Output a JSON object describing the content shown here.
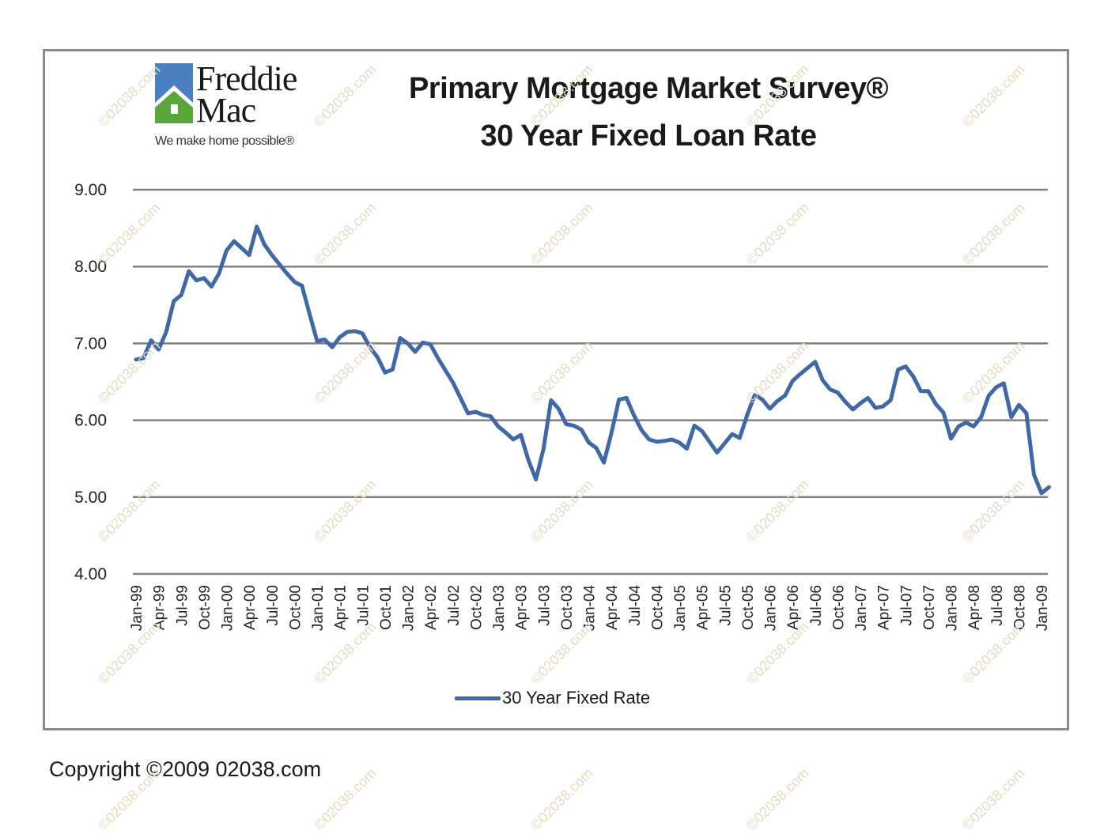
{
  "logo": {
    "name_line1": "Freddie",
    "name_line2": "Mac",
    "tagline": "We make home possible®",
    "colors": {
      "roof": "#4a7fc1",
      "house": "#5aa63a"
    }
  },
  "title": {
    "line1": "Primary Mortgage Market Survey®",
    "line2": "30 Year Fixed Loan Rate"
  },
  "legend": {
    "label": "30 Year Fixed Rate",
    "color": "#4068a8"
  },
  "copyright": "Copyright ©2009 02038.com",
  "watermark": "©02038.com",
  "chart_data": {
    "type": "line",
    "title": "Primary Mortgage Market Survey® 30 Year Fixed Loan Rate",
    "xlabel": "",
    "ylabel": "",
    "ylim": [
      4.0,
      9.0
    ],
    "yticks": [
      "9.00",
      "8.00",
      "7.00",
      "6.00",
      "5.00",
      "4.00"
    ],
    "grid": true,
    "legend_position": "bottom",
    "xtick_labels": [
      "Jan-99",
      "Apr-99",
      "Jul-99",
      "Oct-99",
      "Jan-00",
      "Apr-00",
      "Jul-00",
      "Oct-00",
      "Jan-01",
      "Apr-01",
      "Jul-01",
      "Oct-01",
      "Jan-02",
      "Apr-02",
      "Jul-02",
      "Oct-02",
      "Jan-03",
      "Apr-03",
      "Jul-03",
      "Oct-03",
      "Jan-04",
      "Apr-04",
      "Jul-04",
      "Oct-04",
      "Jan-05",
      "Apr-05",
      "Jul-05",
      "Oct-05",
      "Jan-06",
      "Apr-06",
      "Jul-06",
      "Oct-06",
      "Jan-07",
      "Apr-07",
      "Jul-07",
      "Oct-07",
      "Jan-08",
      "Apr-08",
      "Jul-08",
      "Oct-08",
      "Jan-09"
    ],
    "series": [
      {
        "name": "30 Year Fixed Rate",
        "color": "#4068a8",
        "start": "Jan-99",
        "frequency": "monthly",
        "values": [
          6.79,
          6.81,
          7.04,
          6.92,
          7.15,
          7.55,
          7.63,
          7.94,
          7.82,
          7.85,
          7.74,
          7.91,
          8.21,
          8.33,
          8.24,
          8.15,
          8.52,
          8.29,
          8.15,
          8.03,
          7.91,
          7.8,
          7.75,
          7.38,
          7.03,
          7.05,
          6.95,
          7.08,
          7.15,
          7.16,
          7.13,
          6.95,
          6.82,
          6.62,
          6.66,
          7.07,
          7.0,
          6.89,
          7.01,
          6.99,
          6.81,
          6.65,
          6.49,
          6.29,
          6.09,
          6.11,
          6.07,
          6.05,
          5.92,
          5.84,
          5.75,
          5.81,
          5.48,
          5.23,
          5.63,
          6.26,
          6.15,
          5.95,
          5.93,
          5.88,
          5.71,
          5.64,
          5.45,
          5.83,
          6.27,
          6.29,
          6.06,
          5.87,
          5.75,
          5.72,
          5.73,
          5.75,
          5.71,
          5.63,
          5.93,
          5.86,
          5.72,
          5.58,
          5.7,
          5.82,
          5.77,
          6.07,
          6.33,
          6.27,
          6.15,
          6.25,
          6.32,
          6.51,
          6.6,
          6.68,
          6.76,
          6.52,
          6.4,
          6.36,
          6.24,
          6.14,
          6.22,
          6.29,
          6.16,
          6.18,
          6.26,
          6.66,
          6.7,
          6.57,
          6.38,
          6.38,
          6.21,
          6.1,
          5.76,
          5.92,
          5.97,
          5.92,
          6.04,
          6.32,
          6.43,
          6.48,
          6.04,
          6.2,
          6.09,
          5.29,
          5.05,
          5.13
        ]
      }
    ]
  }
}
